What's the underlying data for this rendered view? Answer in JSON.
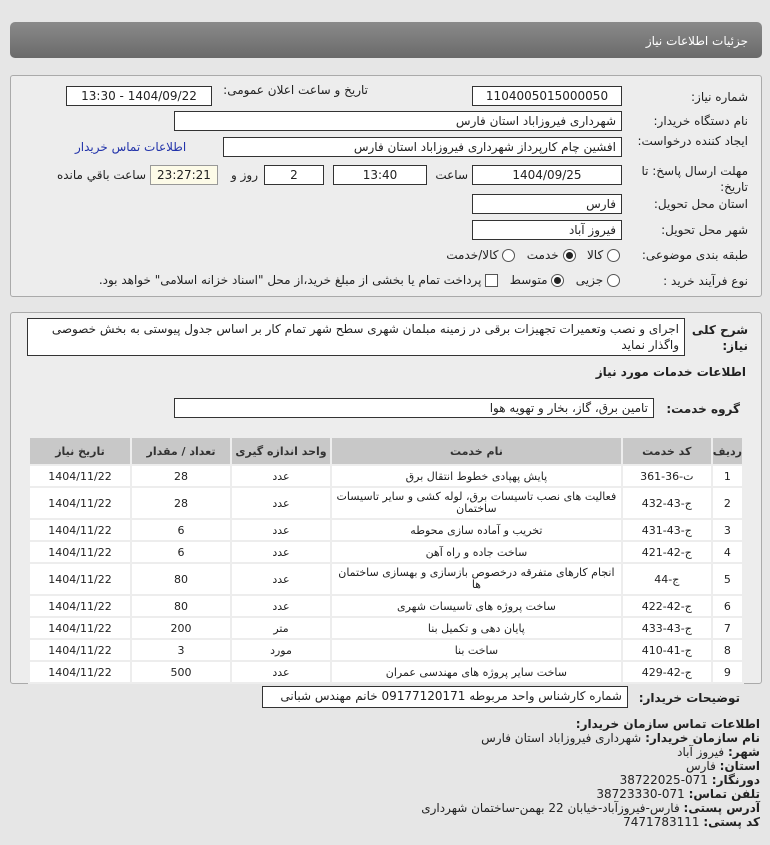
{
  "header": {
    "title": "جزئیات اطلاعات نیاز"
  },
  "form": {
    "need_number_label": "شماره نیاز:",
    "need_number": "1104005015000050",
    "announce_label": "تاریخ و ساعت اعلان عمومی:",
    "announce_value": "1404/09/22 - 13:30",
    "buyer_org_label": "نام دستگاه خریدار:",
    "buyer_org": "شهرداری فیروزاباد استان فارس",
    "creator_label": "ایجاد کننده درخواست:",
    "creator": "افشین چام کارپرداز شهرداری فیروزاباد استان فارس",
    "contact_link": "اطلاعات تماس خریدار",
    "deadline_label": "مهلت ارسال پاسخ: تا تاریخ:",
    "deadline_date": "1404/09/25",
    "time_label": "ساعت",
    "deadline_time": "13:40",
    "days": "2",
    "days_label": "روز و",
    "remaining": "23:27:21",
    "remaining_label": "ساعت باقي مانده",
    "province_label": "استان محل تحویل:",
    "province": "فارس",
    "city_label": "شهر محل تحویل:",
    "city": "فیروز آباد",
    "category_label": "طبقه بندی موضوعی:",
    "category_options": [
      "کالا",
      "خدمت",
      "کالا/خدمت"
    ],
    "category_selected": "خدمت",
    "process_label": "نوع فرآیند خرید :",
    "process_options": [
      "جزیی",
      "متوسط"
    ],
    "process_selected": "متوسط",
    "payment_note": "پرداخت تمام یا بخشی از مبلغ خرید،از محل \"اسناد خزانه اسلامی\" خواهد بود."
  },
  "description": {
    "label": "شرح کلی نیاز:",
    "text": "اجرای و نصب وتعمیرات تجهیزات برقی در زمینه مبلمان شهری سطح شهر تمام کار بر اساس جدول پیوستی به بخش خصوصی واگذار نماید"
  },
  "services": {
    "title": "اطلاعات خدمات مورد نیاز",
    "group_label": "گروه خدمت:",
    "group": "تامین برق، گاز، بخار و تهویه هوا",
    "columns": [
      "ردیف",
      "کد خدمت",
      "نام خدمت",
      "واحد اندازه گیری",
      "تعداد / مقدار",
      "تاریخ نیاز"
    ],
    "rows": [
      [
        "1",
        "ت-36-361",
        "پایش پهپادی خطوط انتقال برق",
        "عدد",
        "28",
        "1404/11/22"
      ],
      [
        "2",
        "ج-43-432",
        "فعالیت های نصب تاسیسات برق، لوله کشی و سایر تاسیسات ساختمان",
        "عدد",
        "28",
        "1404/11/22"
      ],
      [
        "3",
        "ج-43-431",
        "تخریب و آماده سازی محوطه",
        "عدد",
        "6",
        "1404/11/22"
      ],
      [
        "4",
        "ج-42-421",
        "ساخت جاده و راه آهن",
        "عدد",
        "6",
        "1404/11/22"
      ],
      [
        "5",
        "ج-44",
        "انجام کارهای متفرقه درخصوص بازسازی و بهسازی ساختمان ها",
        "عدد",
        "80",
        "1404/11/22"
      ],
      [
        "6",
        "ج-42-422",
        "ساخت پروژه های تاسیسات شهری",
        "عدد",
        "80",
        "1404/11/22"
      ],
      [
        "7",
        "ج-43-433",
        "پایان دهی و تکمیل بنا",
        "متر",
        "200",
        "1404/11/22"
      ],
      [
        "8",
        "ج-41-410",
        "ساخت بنا",
        "مورد",
        "3",
        "1404/11/22"
      ],
      [
        "9",
        "ج-42-429",
        "ساخت سایر پروژه های مهندسی عمران",
        "عدد",
        "500",
        "1404/11/22"
      ]
    ]
  },
  "buyer_notes": {
    "label": "توضیحات خریدار:",
    "text": "شماره کارشناس واحد مربوطه 09177120171 خانم مهندس شبانی"
  },
  "contact": {
    "title": "اطلاعات تماس سازمان خریدار:",
    "org_label": "نام سازمان خریدار:",
    "org": "شهرداری فیروزاباد استان فارس",
    "city_label": "شهر:",
    "city": "فیروز آباد",
    "province_label": "استان:",
    "province": "فارس",
    "fax_label": "دورنگار:",
    "fax": "071-38722025",
    "phone_label": "تلفن تماس:",
    "phone": "071-38723330",
    "address_label": "آدرس پستی:",
    "address": "فارس-فیروزآباد-خیابان 22 بهمن-ساختمان شهرداری",
    "postal_label": "کد پستی:",
    "postal": "7471783111"
  }
}
